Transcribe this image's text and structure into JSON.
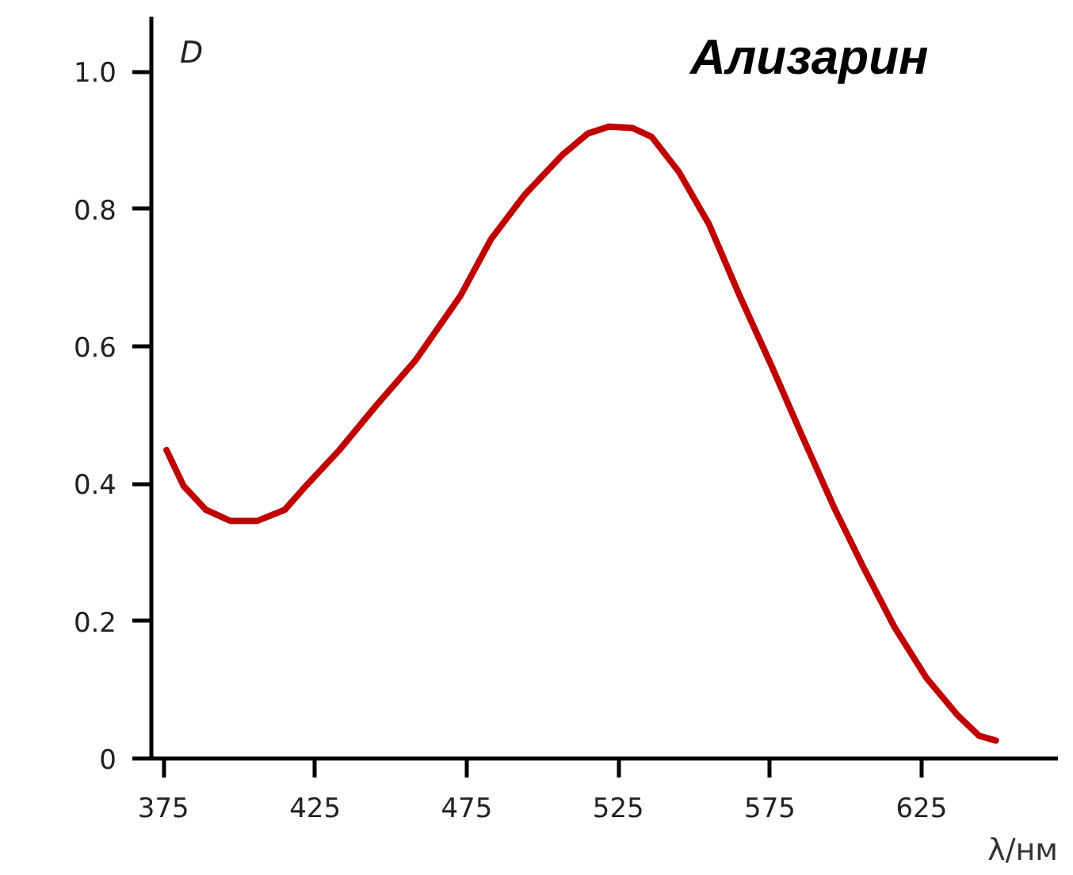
{
  "chart_data": {
    "type": "line",
    "title": "Ализарин",
    "xlabel": "λ/нм",
    "ylabel": "D",
    "xlim": [
      371,
      670
    ],
    "ylim": [
      0,
      1.08
    ],
    "xticks": [
      375,
      425,
      475,
      525,
      575,
      625
    ],
    "yticks": [
      {
        "value": 0,
        "label": "0"
      },
      {
        "value": 0.2,
        "label": "0.2"
      },
      {
        "value": 0.4,
        "label": "0.4"
      },
      {
        "value": 0.6,
        "label": "0.6"
      },
      {
        "value": 0.8,
        "label": "0.8"
      },
      {
        "value": 1.0,
        "label": "1.0"
      }
    ],
    "grid": false,
    "marker": "none",
    "line_style": "solid",
    "series": [
      {
        "color": "#c00000",
        "x": [
          376,
          381.6,
          389,
          397,
          406,
          415,
          422,
          433,
          445,
          458,
          473,
          483,
          494,
          506.6,
          515,
          522,
          529.6,
          536,
          545,
          555,
          565,
          575.5,
          585.7,
          596,
          606,
          616,
          626.5,
          636.7,
          644,
          649.5
        ],
        "values": [
          0.449,
          0.397,
          0.362,
          0.346,
          0.346,
          0.362,
          0.397,
          0.449,
          0.513,
          0.579,
          0.674,
          0.756,
          0.82,
          0.879,
          0.91,
          0.92,
          0.918,
          0.905,
          0.854,
          0.777,
          0.674,
          0.572,
          0.469,
          0.367,
          0.277,
          0.192,
          0.118,
          0.064,
          0.033,
          0.026
        ]
      }
    ]
  }
}
